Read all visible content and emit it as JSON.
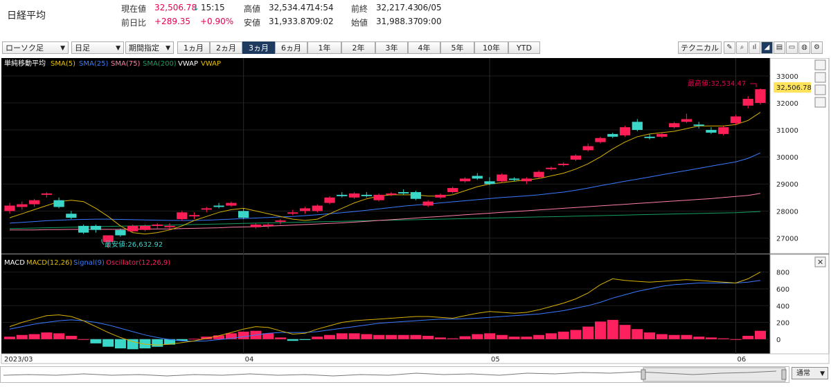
{
  "header": {
    "title": "日経平均",
    "current_label": "現在値",
    "current_value": "32,506.78",
    "current_arrow": "↓",
    "current_time": "15:15",
    "change_label": "前日比",
    "change_value": "+289.35",
    "change_pct": "+0.90%",
    "high_label": "高値",
    "high_value": "32,534.47",
    "high_time": "14:54",
    "low_label": "安値",
    "low_value": "31,933.87",
    "low_time": "09:02",
    "prev_label": "前終",
    "prev_value": "32,217.43",
    "prev_date": "06/05",
    "open_label": "始値",
    "open_value": "31,988.37",
    "open_time": "09:00"
  },
  "toolbar": {
    "chart_type": "ローソク足",
    "interval": "日足",
    "period_select": "期間指定",
    "ranges": [
      "1ヵ月",
      "2ヵ月",
      "3ヵ月",
      "6ヵ月",
      "1年",
      "2年",
      "3年",
      "4年",
      "5年",
      "10年",
      "YTD"
    ],
    "active_range": "3ヵ月",
    "technical_label": "テクニカル"
  },
  "price_legend": {
    "title": "単純移動平均",
    "items": [
      {
        "label": "SMA(5)",
        "color": "#e5c100"
      },
      {
        "label": "SMA(25)",
        "color": "#3a7bff"
      },
      {
        "label": "SMA(75)",
        "color": "#ff80a0"
      },
      {
        "label": "SMA(200)",
        "color": "#12a060"
      },
      {
        "label": "VWAP",
        "color": "#ffffff"
      },
      {
        "label": "VWAP",
        "color": "#e5c100"
      }
    ]
  },
  "macd_legend": {
    "title": "MACD",
    "items": [
      {
        "label": "MACD(12,26)",
        "color": "#e5c100"
      },
      {
        "label": "Signal(9)",
        "color": "#3a7bff"
      },
      {
        "label": "Oscillator(12,26,9)",
        "color": "#ff2060"
      }
    ]
  },
  "annotations": {
    "high": "最高値:32,534.47",
    "low": "最安値:26,632.92",
    "last_price": "32,506.78"
  },
  "chart_data": {
    "type": "candlestick",
    "price_axis": {
      "ylim": [
        26500,
        33200
      ],
      "ticks": [
        27000,
        28000,
        29000,
        30000,
        31000,
        32000,
        33000
      ],
      "tick_labels": [
        "27000",
        "28000",
        "29000",
        "30000",
        "31000",
        "32000",
        "33000"
      ]
    },
    "macd_axis": {
      "ylim": [
        -150,
        880
      ],
      "ticks": [
        0,
        200,
        400,
        600,
        800
      ],
      "tick_labels": [
        "0",
        "200",
        "400",
        "600",
        "800"
      ]
    },
    "x_labels": [
      {
        "index": 0,
        "label": "2023/03"
      },
      {
        "index": 19,
        "label": "04"
      },
      {
        "index": 39,
        "label": "05"
      },
      {
        "index": 59,
        "label": "06"
      }
    ],
    "candles": [
      [
        28000,
        28300,
        27900,
        28200
      ],
      [
        28150,
        28350,
        28050,
        28250
      ],
      [
        28250,
        28450,
        28150,
        28400
      ],
      [
        28600,
        28700,
        28500,
        28650
      ],
      [
        28400,
        28500,
        28100,
        28150
      ],
      [
        27900,
        28000,
        27700,
        27750
      ],
      [
        27450,
        27500,
        27150,
        27200
      ],
      [
        27450,
        27500,
        27200,
        27300
      ],
      [
        26850,
        27050,
        26633,
        27100
      ],
      [
        27300,
        27350,
        27050,
        27100
      ],
      [
        27250,
        27500,
        27200,
        27450
      ],
      [
        27300,
        27500,
        27250,
        27450
      ],
      [
        27450,
        27550,
        27350,
        27500
      ],
      [
        27400,
        27550,
        27300,
        27450
      ],
      [
        27700,
        28000,
        27650,
        27950
      ],
      [
        27800,
        27950,
        27700,
        27850
      ],
      [
        28050,
        28150,
        27950,
        28100
      ],
      [
        28200,
        28300,
        28100,
        28150
      ],
      [
        28200,
        28350,
        28150,
        28300
      ],
      [
        28000,
        28100,
        27700,
        27750
      ],
      [
        27400,
        27550,
        27350,
        27500
      ],
      [
        27450,
        27550,
        27350,
        27500
      ],
      [
        27600,
        27700,
        27500,
        27650
      ],
      [
        27900,
        28050,
        27850,
        27950
      ],
      [
        28000,
        28150,
        27900,
        28100
      ],
      [
        28000,
        28250,
        27950,
        28200
      ],
      [
        28300,
        28550,
        28250,
        28500
      ],
      [
        28600,
        28700,
        28500,
        28550
      ],
      [
        28500,
        28700,
        28450,
        28650
      ],
      [
        28600,
        28700,
        28500,
        28550
      ],
      [
        28400,
        28650,
        28350,
        28600
      ],
      [
        28600,
        28700,
        28550,
        28650
      ],
      [
        28700,
        28800,
        28600,
        28650
      ],
      [
        28700,
        28750,
        28400,
        28450
      ],
      [
        28200,
        28400,
        28150,
        28350
      ],
      [
        28500,
        28650,
        28450,
        28600
      ],
      [
        28700,
        28900,
        28650,
        28850
      ],
      [
        29100,
        29250,
        29050,
        29200
      ],
      [
        29300,
        29400,
        29150,
        29200
      ],
      [
        29100,
        29250,
        28950,
        29000
      ],
      [
        29100,
        29400,
        29050,
        29350
      ],
      [
        29200,
        29250,
        29100,
        29150
      ],
      [
        29100,
        29250,
        29000,
        29200
      ],
      [
        29250,
        29500,
        29200,
        29450
      ],
      [
        29550,
        29650,
        29500,
        29600
      ],
      [
        29700,
        29800,
        29650,
        29750
      ],
      [
        29900,
        30100,
        29850,
        30050
      ],
      [
        30250,
        30500,
        30200,
        30400
      ],
      [
        30550,
        30750,
        30500,
        30700
      ],
      [
        30850,
        30900,
        30700,
        30750
      ],
      [
        30800,
        31150,
        30750,
        31100
      ],
      [
        31300,
        31400,
        30950,
        31000
      ],
      [
        30750,
        30850,
        30650,
        30700
      ],
      [
        30750,
        30900,
        30700,
        30850
      ],
      [
        31100,
        31300,
        31050,
        31250
      ],
      [
        31300,
        31600,
        31250,
        31400
      ],
      [
        31200,
        31300,
        31050,
        31150
      ],
      [
        31000,
        31100,
        30850,
        30900
      ],
      [
        30850,
        31150,
        30800,
        31100
      ],
      [
        31250,
        31550,
        31200,
        31500
      ],
      [
        31900,
        32250,
        31800,
        32150
      ],
      [
        32000,
        32534,
        31934,
        32507
      ]
    ],
    "series": [
      {
        "name": "SMA(5)",
        "color": "#d9b300",
        "values": [
          27750,
          27900,
          28050,
          28200,
          28350,
          28400,
          28350,
          28100,
          27800,
          27450,
          27200,
          27150,
          27200,
          27300,
          27450,
          27650,
          27800,
          27950,
          28050,
          28100,
          28000,
          27900,
          27800,
          27700,
          27650,
          27700,
          27900,
          28100,
          28300,
          28450,
          28550,
          28600,
          28600,
          28600,
          28550,
          28550,
          28600,
          28750,
          28900,
          29000,
          29050,
          29100,
          29150,
          29200,
          29300,
          29400,
          29550,
          29750,
          30000,
          30300,
          30550,
          30750,
          30850,
          30900,
          30950,
          31050,
          31150,
          31150,
          31150,
          31200,
          31350,
          31650
        ]
      },
      {
        "name": "SMA(25)",
        "color": "#3a7bff",
        "values": [
          27550,
          27580,
          27610,
          27640,
          27660,
          27680,
          27690,
          27700,
          27700,
          27690,
          27680,
          27670,
          27660,
          27650,
          27650,
          27650,
          27660,
          27680,
          27700,
          27720,
          27740,
          27760,
          27780,
          27800,
          27830,
          27860,
          27900,
          27940,
          27980,
          28030,
          28080,
          28130,
          28180,
          28220,
          28260,
          28300,
          28340,
          28380,
          28420,
          28460,
          28500,
          28530,
          28560,
          28600,
          28650,
          28700,
          28770,
          28850,
          28940,
          29020,
          29100,
          29180,
          29260,
          29340,
          29420,
          29500,
          29580,
          29660,
          29740,
          29820,
          29950,
          30150
        ]
      },
      {
        "name": "SMA(75)",
        "color": "#ff7fa8",
        "values": [
          27300,
          27300,
          27300,
          27310,
          27310,
          27320,
          27320,
          27320,
          27320,
          27320,
          27330,
          27330,
          27340,
          27340,
          27350,
          27360,
          27370,
          27380,
          27400,
          27410,
          27420,
          27440,
          27460,
          27480,
          27500,
          27520,
          27540,
          27560,
          27590,
          27620,
          27650,
          27680,
          27710,
          27740,
          27770,
          27800,
          27830,
          27860,
          27890,
          27920,
          27950,
          27980,
          28010,
          28040,
          28070,
          28100,
          28130,
          28160,
          28190,
          28220,
          28250,
          28280,
          28310,
          28340,
          28370,
          28400,
          28430,
          28460,
          28500,
          28540,
          28580,
          28650
        ]
      },
      {
        "name": "SMA(200)",
        "color": "#12a060",
        "values": [
          27350,
          27360,
          27370,
          27380,
          27390,
          27400,
          27410,
          27420,
          27430,
          27440,
          27450,
          27460,
          27470,
          27480,
          27490,
          27500,
          27510,
          27520,
          27530,
          27540,
          27550,
          27560,
          27570,
          27580,
          27590,
          27600,
          27610,
          27620,
          27630,
          27640,
          27650,
          27660,
          27670,
          27680,
          27690,
          27700,
          27710,
          27720,
          27730,
          27740,
          27750,
          27760,
          27770,
          27780,
          27790,
          27800,
          27810,
          27820,
          27830,
          27840,
          27850,
          27860,
          27870,
          27880,
          27890,
          27900,
          27910,
          27920,
          27930,
          27940,
          27960,
          27980
        ]
      },
      {
        "name": "MACD(12,26)",
        "color": "#d9b300",
        "values": [
          150,
          200,
          240,
          280,
          290,
          270,
          220,
          150,
          80,
          20,
          -30,
          -60,
          -70,
          -60,
          -40,
          -20,
          10,
          40,
          80,
          120,
          150,
          140,
          100,
          60,
          70,
          120,
          160,
          200,
          220,
          230,
          240,
          250,
          260,
          270,
          270,
          260,
          250,
          280,
          310,
          330,
          320,
          310,
          320,
          350,
          390,
          430,
          480,
          550,
          650,
          720,
          700,
          690,
          680,
          690,
          700,
          710,
          700,
          690,
          680,
          670,
          720,
          800
        ]
      },
      {
        "name": "Signal(9)",
        "color": "#3a7bff",
        "values": [
          120,
          150,
          180,
          200,
          220,
          230,
          220,
          200,
          170,
          130,
          90,
          50,
          20,
          -5,
          -20,
          -25,
          -20,
          -5,
          10,
          30,
          50,
          70,
          80,
          80,
          80,
          90,
          110,
          130,
          150,
          170,
          190,
          200,
          210,
          220,
          230,
          240,
          240,
          245,
          250,
          260,
          270,
          280,
          290,
          300,
          320,
          340,
          370,
          400,
          440,
          490,
          530,
          570,
          600,
          630,
          650,
          660,
          670,
          670,
          670,
          670,
          680,
          700
        ]
      },
      {
        "name": "Oscillator(12,26,9)",
        "color": "#ff2060",
        "values": [
          30,
          50,
          60,
          80,
          70,
          40,
          0,
          -50,
          -90,
          -110,
          -120,
          -110,
          -90,
          -65,
          -20,
          5,
          30,
          45,
          70,
          90,
          100,
          70,
          20,
          -20,
          -10,
          30,
          50,
          70,
          70,
          60,
          50,
          50,
          50,
          50,
          40,
          20,
          10,
          35,
          60,
          70,
          50,
          30,
          30,
          50,
          70,
          90,
          110,
          150,
          210,
          230,
          170,
          120,
          80,
          60,
          50,
          50,
          30,
          20,
          10,
          0,
          40,
          100
        ]
      }
    ]
  }
}
